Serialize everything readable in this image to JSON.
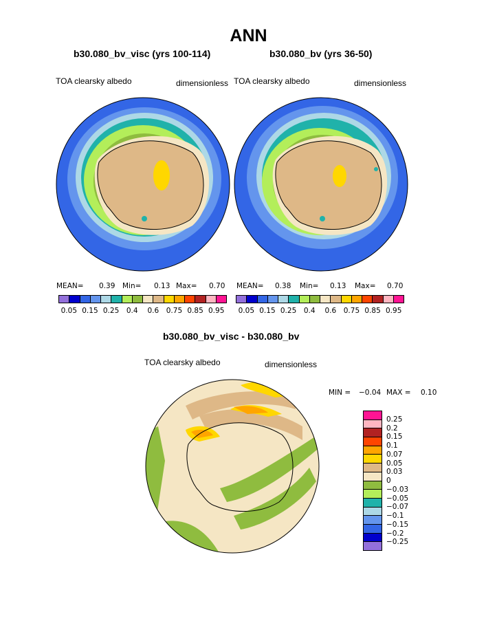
{
  "title": "ANN",
  "panels": [
    {
      "heading": "b30.080_bv_visc (yrs 100-114)",
      "left_label": "TOA clearsky albedo",
      "right_label": "dimensionless",
      "stats": {
        "mean_label": "MEAN=",
        "mean": "0.39",
        "min_label": "Min=",
        "min": "0.13",
        "max_label": "Max=",
        "max": "0.70"
      }
    },
    {
      "heading": "b30.080_bv (yrs 36-50)",
      "left_label": "TOA clearsky albedo",
      "right_label": "dimensionless",
      "stats": {
        "mean_label": "MEAN=",
        "mean": "0.38",
        "min_label": "Min=",
        "min": "0.13",
        "max_label": "Max=",
        "max": "0.70"
      }
    }
  ],
  "colorbar_top": {
    "colors": [
      "#9370db",
      "#0000cd",
      "#3366e6",
      "#6495ed",
      "#add8e6",
      "#20b2aa",
      "#b3ee5a",
      "#8fbc3f",
      "#f5e6c4",
      "#deb887",
      "#ffd700",
      "#ffa500",
      "#ff4500",
      "#b22222",
      "#ffb6c1",
      "#ff1493"
    ],
    "ticks": [
      "0.05",
      "0.15",
      "0.25",
      "0.4",
      "0.6",
      "0.75",
      "0.85",
      "0.95"
    ]
  },
  "diff_panel": {
    "heading": "b30.080_bv_visc - b30.080_bv",
    "left_label": "TOA clearsky albedo",
    "right_label": "dimensionless",
    "minmax": {
      "min_label": "MIN =",
      "min": "−0.04",
      "max_label": "MAX =",
      "max": "0.10"
    }
  },
  "colorbar_diff": {
    "colors": [
      "#ff1493",
      "#ffb6c1",
      "#b22222",
      "#ff4500",
      "#ffa500",
      "#ffd700",
      "#deb887",
      "#f5e6c4",
      "#8fbc3f",
      "#b3ee5a",
      "#20b2aa",
      "#add8e6",
      "#6495ed",
      "#3366e6",
      "#0000cd",
      "#9370db"
    ],
    "ticks": [
      "0.25",
      "0.2",
      "0.15",
      "0.1",
      "0.07",
      "0.05",
      "0.03",
      "0",
      "−0.03",
      "−0.05",
      "−0.07",
      "−0.1",
      "−0.15",
      "−0.2",
      "−0.25"
    ]
  }
}
